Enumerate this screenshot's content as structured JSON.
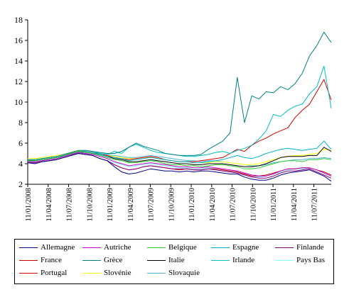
{
  "chart_data": {
    "type": "line",
    "ylim": [
      2,
      18
    ],
    "yticks": [
      2,
      4,
      6,
      8,
      10,
      12,
      14,
      16,
      18
    ],
    "xticks": [
      "11/01/2008",
      "11/04/2008",
      "11/07/2008",
      "11/10/2008",
      "11/01/2009",
      "11/04/2009",
      "11/07/2009",
      "11/10/2009",
      "11/01/2010",
      "11/04/2010",
      "11/07/2010",
      "11/10/2010",
      "11/01/2011",
      "11/04/2011",
      "11/07/2011"
    ],
    "grid": false,
    "legend_position": "bottom",
    "series": [
      {
        "name": "Allemagne",
        "color": "#000080",
        "values": [
          4.1,
          4.0,
          4.2,
          4.3,
          4.4,
          4.6,
          4.8,
          5.0,
          4.9,
          4.8,
          4.5,
          4.3,
          3.7,
          3.2,
          3.0,
          3.1,
          3.3,
          3.5,
          3.4,
          3.3,
          3.3,
          3.2,
          3.3,
          3.2,
          3.3,
          3.3,
          3.2,
          3.1,
          3.0,
          3.0,
          2.7,
          2.5,
          2.4,
          2.4,
          2.6,
          2.9,
          3.1,
          3.2,
          3.3,
          3.4,
          3.1,
          2.8,
          2.3
        ]
      },
      {
        "name": "Autriche",
        "color": "#cc00cc",
        "values": [
          4.2,
          4.2,
          4.3,
          4.4,
          4.5,
          4.7,
          4.9,
          5.1,
          5.0,
          4.9,
          4.7,
          4.5,
          4.2,
          4.0,
          3.8,
          3.9,
          4.0,
          4.1,
          4.0,
          3.9,
          3.8,
          3.7,
          3.7,
          3.6,
          3.6,
          3.7,
          3.6,
          3.5,
          3.4,
          3.3,
          3.1,
          2.9,
          2.8,
          2.8,
          3.0,
          3.3,
          3.5,
          3.5,
          3.6,
          3.6,
          3.4,
          3.1,
          2.8
        ]
      },
      {
        "name": "Belgique",
        "color": "#33cc33",
        "values": [
          4.3,
          4.3,
          4.4,
          4.5,
          4.6,
          4.8,
          5.0,
          5.2,
          5.1,
          5.0,
          4.8,
          4.6,
          4.4,
          4.3,
          4.1,
          4.1,
          4.2,
          4.3,
          4.2,
          4.0,
          3.9,
          3.9,
          3.8,
          3.8,
          3.7,
          3.8,
          3.9,
          3.9,
          3.8,
          3.7,
          3.5,
          3.5,
          3.6,
          3.8,
          4.0,
          4.2,
          4.3,
          4.3,
          4.2,
          4.4,
          4.4,
          4.5,
          4.4
        ]
      },
      {
        "name": "Espagne",
        "color": "#00b0d0",
        "values": [
          4.2,
          4.3,
          4.4,
          4.5,
          4.6,
          4.7,
          4.9,
          5.1,
          5.1,
          5.0,
          4.9,
          4.7,
          4.6,
          4.5,
          4.3,
          4.4,
          4.5,
          4.6,
          4.5,
          4.4,
          4.3,
          4.2,
          4.2,
          4.1,
          4.1,
          4.2,
          4.3,
          4.4,
          4.6,
          4.8,
          4.6,
          4.5,
          4.7,
          5.0,
          5.2,
          5.4,
          5.5,
          5.4,
          5.3,
          5.4,
          5.5,
          6.2,
          5.4
        ]
      },
      {
        "name": "Finlande",
        "color": "#800080",
        "values": [
          4.1,
          4.1,
          4.2,
          4.3,
          4.4,
          4.6,
          4.8,
          5.0,
          4.9,
          4.8,
          4.5,
          4.3,
          3.9,
          3.6,
          3.4,
          3.5,
          3.7,
          3.8,
          3.7,
          3.6,
          3.5,
          3.5,
          3.5,
          3.4,
          3.4,
          3.5,
          3.4,
          3.3,
          3.2,
          3.1,
          2.9,
          2.7,
          2.6,
          2.6,
          2.8,
          3.1,
          3.3,
          3.3,
          3.4,
          3.5,
          3.2,
          2.9,
          2.6
        ]
      },
      {
        "name": "France",
        "color": "#c00000",
        "values": [
          4.1,
          4.1,
          4.2,
          4.3,
          4.4,
          4.6,
          4.8,
          5.0,
          4.9,
          4.8,
          4.5,
          4.3,
          3.9,
          3.6,
          3.4,
          3.5,
          3.7,
          3.8,
          3.7,
          3.6,
          3.5,
          3.4,
          3.5,
          3.4,
          3.4,
          3.5,
          3.5,
          3.4,
          3.3,
          3.2,
          3.0,
          2.8,
          2.8,
          2.9,
          3.1,
          3.3,
          3.5,
          3.5,
          3.6,
          3.6,
          3.4,
          3.2,
          2.9
        ]
      },
      {
        "name": "Grèce",
        "color": "#008080",
        "values": [
          4.4,
          4.4,
          4.5,
          4.6,
          4.7,
          4.9,
          5.1,
          5.3,
          5.3,
          5.2,
          5.1,
          5.0,
          5.0,
          5.2,
          5.6,
          6.0,
          5.7,
          5.5,
          5.3,
          5.0,
          4.9,
          4.8,
          4.8,
          4.8,
          4.9,
          5.4,
          5.8,
          6.2,
          7.0,
          12.4,
          8.0,
          10.6,
          10.3,
          11.0,
          10.9,
          11.5,
          11.2,
          11.8,
          12.8,
          14.5,
          15.5,
          16.8,
          15.8
        ]
      },
      {
        "name": "Italie",
        "color": "#000000",
        "values": [
          4.3,
          4.3,
          4.4,
          4.5,
          4.6,
          4.8,
          5.0,
          5.2,
          5.1,
          5.0,
          4.9,
          4.7,
          4.5,
          4.4,
          4.2,
          4.2,
          4.3,
          4.4,
          4.3,
          4.2,
          4.1,
          4.0,
          4.0,
          3.9,
          3.9,
          4.0,
          4.0,
          4.0,
          3.9,
          3.8,
          3.7,
          3.7,
          3.8,
          4.0,
          4.3,
          4.6,
          4.7,
          4.7,
          4.7,
          4.8,
          4.8,
          5.6,
          5.2
        ]
      },
      {
        "name": "Irlande",
        "color": "#00c0c0",
        "values": [
          4.3,
          4.3,
          4.4,
          4.5,
          4.6,
          4.8,
          5.0,
          5.2,
          5.2,
          5.1,
          5.0,
          4.9,
          5.2,
          5.0,
          5.6,
          5.9,
          5.6,
          5.3,
          5.1,
          5.0,
          4.9,
          4.8,
          4.7,
          4.7,
          4.8,
          4.9,
          5.1,
          5.2,
          5.0,
          5.3,
          5.5,
          5.8,
          6.4,
          7.2,
          8.8,
          8.6,
          9.2,
          9.6,
          9.8,
          10.8,
          11.5,
          13.5,
          9.4
        ]
      },
      {
        "name": "Pays Bas",
        "color": "#80ffff",
        "values": [
          4.2,
          4.2,
          4.3,
          4.4,
          4.5,
          4.7,
          4.9,
          5.1,
          5.0,
          4.9,
          4.7,
          4.5,
          4.1,
          3.9,
          3.7,
          3.8,
          3.9,
          4.0,
          3.9,
          3.8,
          3.7,
          3.6,
          3.6,
          3.5,
          3.5,
          3.6,
          3.5,
          3.4,
          3.3,
          3.2,
          3.0,
          2.8,
          2.7,
          2.8,
          3.0,
          3.2,
          3.4,
          3.5,
          3.5,
          3.6,
          3.4,
          3.1,
          2.8
        ]
      },
      {
        "name": "Portugal",
        "color": "#d40000",
        "values": [
          4.3,
          4.3,
          4.4,
          4.5,
          4.6,
          4.8,
          5.0,
          5.2,
          5.2,
          5.1,
          4.9,
          4.8,
          4.6,
          4.5,
          4.4,
          4.5,
          4.6,
          4.7,
          4.6,
          4.4,
          4.3,
          4.2,
          4.2,
          4.2,
          4.3,
          4.4,
          4.5,
          4.6,
          5.0,
          5.4,
          5.2,
          5.8,
          6.2,
          6.5,
          6.9,
          7.2,
          7.5,
          8.5,
          9.2,
          9.8,
          11.0,
          12.2,
          10.2
        ]
      },
      {
        "name": "Slovénie",
        "color": "#ffff00",
        "values": [
          4.5,
          4.5,
          4.6,
          4.7,
          4.8,
          4.9,
          5.1,
          5.3,
          5.2,
          5.1,
          4.9,
          4.8,
          4.7,
          4.6,
          4.5,
          4.5,
          4.6,
          4.6,
          4.5,
          4.4,
          4.3,
          4.2,
          4.2,
          4.1,
          4.1,
          4.1,
          4.2,
          4.2,
          4.1,
          4.0,
          3.9,
          3.9,
          4.0,
          4.2,
          4.4,
          4.6,
          4.7,
          4.8,
          4.8,
          4.9,
          5.0,
          5.4,
          5.3
        ]
      },
      {
        "name": "Slovaquie",
        "color": "#4fb5d8",
        "values": [
          4.4,
          4.4,
          4.5,
          4.6,
          4.7,
          4.9,
          5.1,
          5.3,
          5.3,
          5.2,
          5.0,
          4.9,
          4.8,
          4.7,
          4.6,
          4.6,
          4.7,
          4.8,
          4.7,
          4.6,
          4.5,
          4.4,
          4.3,
          4.3,
          4.2,
          4.3,
          4.3,
          4.2,
          4.1,
          4.0,
          3.9,
          3.8,
          3.8,
          3.9,
          4.1,
          4.2,
          4.3,
          4.4,
          4.4,
          4.5,
          4.5,
          4.6,
          4.5
        ]
      }
    ]
  }
}
